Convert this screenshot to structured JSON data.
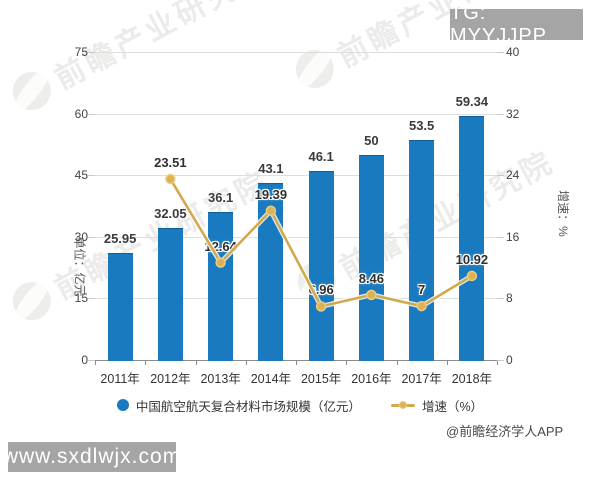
{
  "overlays": {
    "tg_badge": "TG: MYYJJPP",
    "site_badge": "www.sxdlwjx.com",
    "credit": "@前瞻经济学人APP"
  },
  "watermark": {
    "text": "前瞻产业研究院"
  },
  "chart_data": {
    "type": "bar",
    "categories": [
      "2011年",
      "2012年",
      "2013年",
      "2014年",
      "2015年",
      "2016年",
      "2017年",
      "2018年"
    ],
    "series": [
      {
        "name": "中国航空航天复合材料市场规模（亿元）",
        "type": "bar",
        "axis": "left",
        "color": "#1a7abf",
        "values": [
          25.95,
          32.05,
          36.1,
          43.1,
          46.1,
          50,
          53.5,
          59.34
        ],
        "labels": [
          "25.95",
          "32.05",
          "36.1",
          "43.1",
          "46.1",
          "50",
          "53.5",
          "59.34"
        ]
      },
      {
        "name": "增速（%）",
        "type": "line",
        "axis": "right",
        "color": "#d2a94e",
        "marker_fill": "#dcb254",
        "marker_ring": "#e9cd84",
        "values": [
          null,
          23.51,
          12.64,
          19.39,
          6.96,
          8.46,
          7,
          10.92
        ],
        "labels": [
          "",
          "23.51",
          "12.64",
          "19.39",
          "6.96",
          "8.46",
          "7",
          "10.92"
        ]
      }
    ],
    "left_axis": {
      "title": "单位：亿元",
      "ticks": [
        0,
        15,
        30,
        45,
        60,
        75
      ],
      "max": 75
    },
    "right_axis": {
      "title": "增速：%",
      "ticks": [
        0,
        8,
        16,
        24,
        32,
        40
      ],
      "max": 40
    },
    "grid": true,
    "legend_position": "bottom"
  }
}
